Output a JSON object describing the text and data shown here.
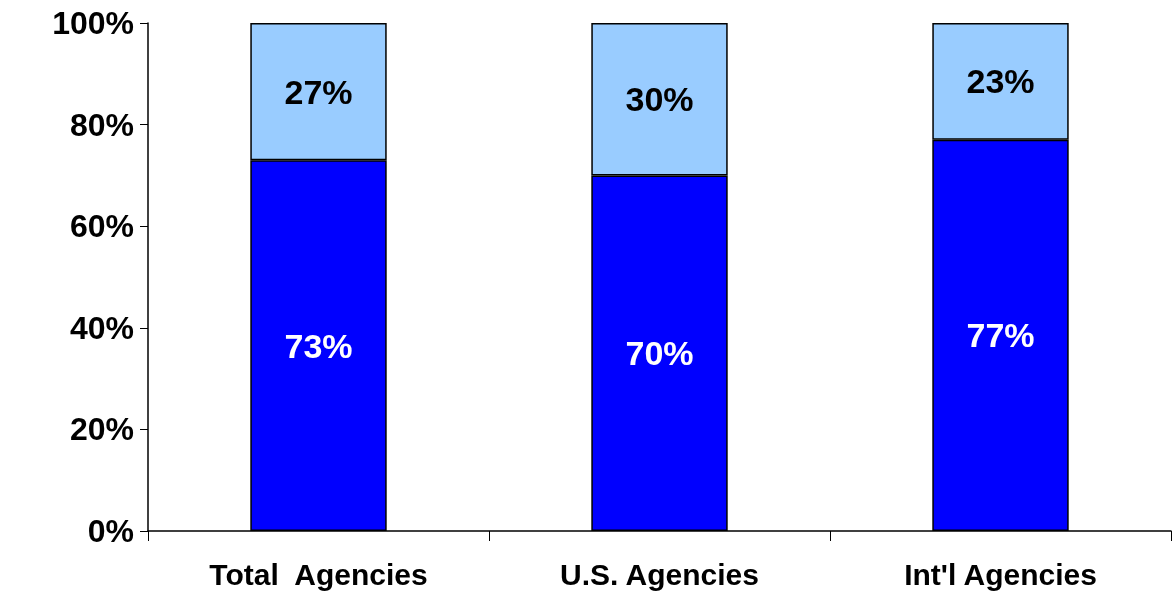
{
  "chart_data": {
    "type": "bar",
    "stacked": true,
    "categories": [
      "Total  Agencies",
      "U.S. Agencies",
      "Int'l Agencies"
    ],
    "series": [
      {
        "color": "#0000ff",
        "values": [
          73,
          70,
          77
        ],
        "value_labels": [
          "73%",
          "70%",
          "77%"
        ]
      },
      {
        "color": "#99ccff",
        "values": [
          27,
          30,
          23
        ],
        "value_labels": [
          "27%",
          "30%",
          "23%"
        ]
      }
    ],
    "ylim": [
      0,
      100
    ],
    "yticks": [
      {
        "value": 0,
        "label": "0%"
      },
      {
        "value": 20,
        "label": "20%"
      },
      {
        "value": 40,
        "label": "40%"
      },
      {
        "value": 60,
        "label": "60%"
      },
      {
        "value": 80,
        "label": "80%"
      },
      {
        "value": 100,
        "label": "100%"
      }
    ],
    "grid": false
  }
}
